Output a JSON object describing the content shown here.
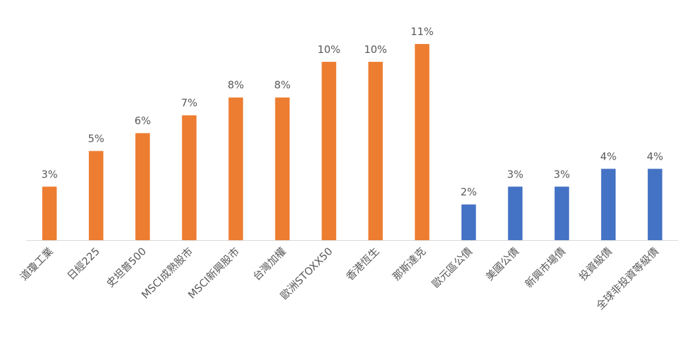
{
  "chart_data": {
    "type": "bar",
    "categories": [
      "道瓊工業",
      "日經225",
      "史坦普500",
      "MSCI成熟股市",
      "MSCI新興股市",
      "台灣加權",
      "歐洲STOXX50",
      "香港恆生",
      "那斯達克",
      "歐元區公債",
      "美國公債",
      "新興市場債",
      "投資級債",
      "全球非投資等級債"
    ],
    "values": [
      3,
      5,
      6,
      7,
      8,
      8,
      10,
      10,
      11,
      2,
      3,
      3,
      4,
      4
    ],
    "value_labels": [
      "3%",
      "5%",
      "6%",
      "7%",
      "8%",
      "8%",
      "10%",
      "10%",
      "11%",
      "2%",
      "3%",
      "3%",
      "4%",
      "4%"
    ],
    "colors": [
      "#ed7d31",
      "#ed7d31",
      "#ed7d31",
      "#ed7d31",
      "#ed7d31",
      "#ed7d31",
      "#ed7d31",
      "#ed7d31",
      "#ed7d31",
      "#4472c4",
      "#4472c4",
      "#4472c4",
      "#4472c4",
      "#4472c4"
    ],
    "ylim": [
      0,
      12
    ]
  }
}
